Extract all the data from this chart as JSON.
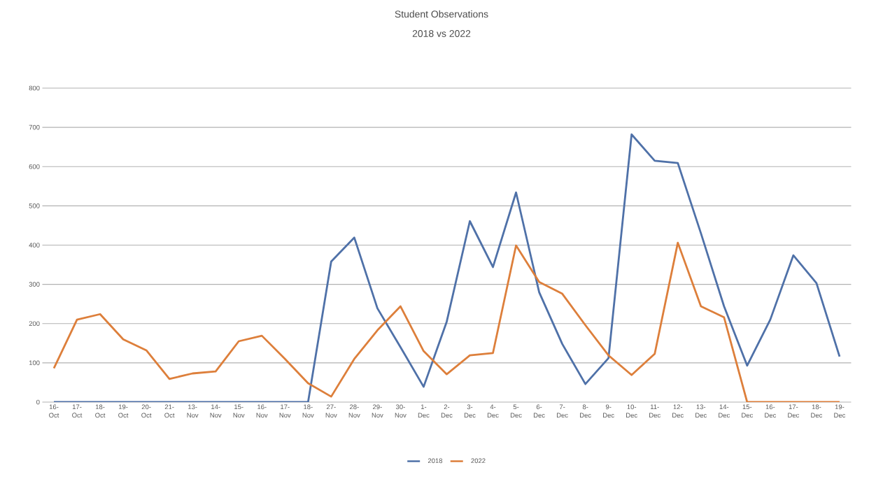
{
  "chart_data": {
    "type": "line",
    "title": "Student Observations",
    "subtitle": "2018 vs 2022",
    "categories": [
      "16-Oct",
      "17-Oct",
      "18-Oct",
      "19-Oct",
      "20-Oct",
      "21-Oct",
      "13-Nov",
      "14-Nov",
      "15-Nov",
      "16-Nov",
      "17-Nov",
      "18-Nov",
      "27-Nov",
      "28-Nov",
      "29-Nov",
      "30-Nov",
      "1-Dec",
      "2-Dec",
      "3-Dec",
      "4-Dec",
      "5-Dec",
      "6-Dec",
      "7-Dec",
      "8-Dec",
      "9-Dec",
      "10-Dec",
      "11-Dec",
      "12-Dec",
      "13-Dec",
      "14-Dec",
      "15-Dec",
      "16-Dec",
      "17-Dec",
      "18-Dec",
      "19-Dec"
    ],
    "series": [
      {
        "name": "2018",
        "color": "#4f71a8",
        "values": [
          0,
          0,
          0,
          0,
          0,
          0,
          0,
          0,
          0,
          0,
          0,
          0,
          358,
          419,
          239,
          140,
          39,
          205,
          461,
          344,
          534,
          280,
          148,
          46,
          112,
          682,
          615,
          609,
          430,
          244,
          93,
          210,
          374,
          303,
          116
        ]
      },
      {
        "name": "2022",
        "color": "#dd7f3b",
        "values": [
          86,
          210,
          224,
          160,
          132,
          59,
          73,
          78,
          155,
          169,
          110,
          48,
          14,
          110,
          183,
          244,
          130,
          71,
          119,
          125,
          399,
          306,
          276,
          196,
          119,
          69,
          123,
          406,
          244,
          216,
          0,
          0,
          0,
          0,
          0
        ]
      }
    ],
    "ylim": [
      0,
      800
    ],
    "yticks": [
      0,
      100,
      200,
      300,
      400,
      500,
      600,
      700,
      800
    ],
    "grid": "y",
    "legend": "bottom",
    "marker": "none",
    "line_style": "solid"
  }
}
